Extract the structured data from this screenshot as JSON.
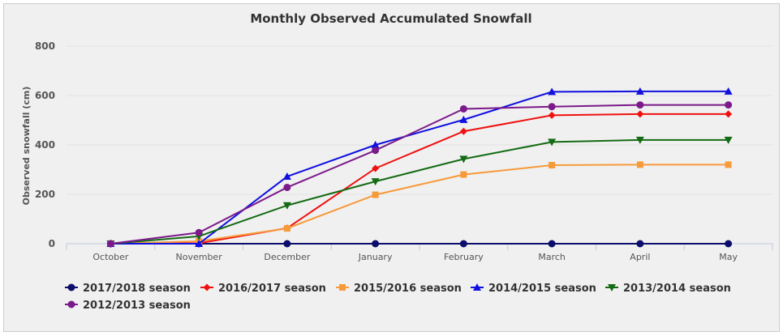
{
  "chart_data": {
    "type": "line",
    "title": "Monthly Observed Accumulated Snowfall",
    "xlabel": "",
    "ylabel": "Observed snowfall (cm)",
    "ylim": [
      0,
      800
    ],
    "yticks": [
      "0",
      "200",
      "400",
      "600",
      "800"
    ],
    "grid": true,
    "legend_position": "bottom",
    "categories": [
      "October",
      "November",
      "December",
      "January",
      "February",
      "March",
      "April",
      "May"
    ],
    "series": [
      {
        "name": "2017/2018 season",
        "color": "#0d0d6b",
        "marker": "circle",
        "values": [
          0,
          0,
          0,
          0,
          0,
          0,
          0,
          0
        ]
      },
      {
        "name": "2016/2017 season",
        "color": "#f01010",
        "marker": "diamond",
        "values": [
          0,
          2,
          63,
          305,
          455,
          520,
          525,
          525
        ]
      },
      {
        "name": "2015/2016 season",
        "color": "#f79a3a",
        "marker": "square",
        "values": [
          0,
          10,
          62,
          198,
          280,
          318,
          320,
          320
        ]
      },
      {
        "name": "2014/2015 season",
        "color": "#1010e0",
        "marker": "triangle",
        "values": [
          0,
          0,
          272,
          400,
          502,
          615,
          617,
          617
        ]
      },
      {
        "name": "2013/2014 season",
        "color": "#136b13",
        "marker": "triangle-down",
        "values": [
          0,
          30,
          155,
          252,
          343,
          412,
          420,
          420
        ]
      },
      {
        "name": "2012/2013 season",
        "color": "#7b1a8a",
        "marker": "circle",
        "values": [
          0,
          45,
          228,
          378,
          546,
          555,
          562,
          562
        ]
      }
    ]
  }
}
